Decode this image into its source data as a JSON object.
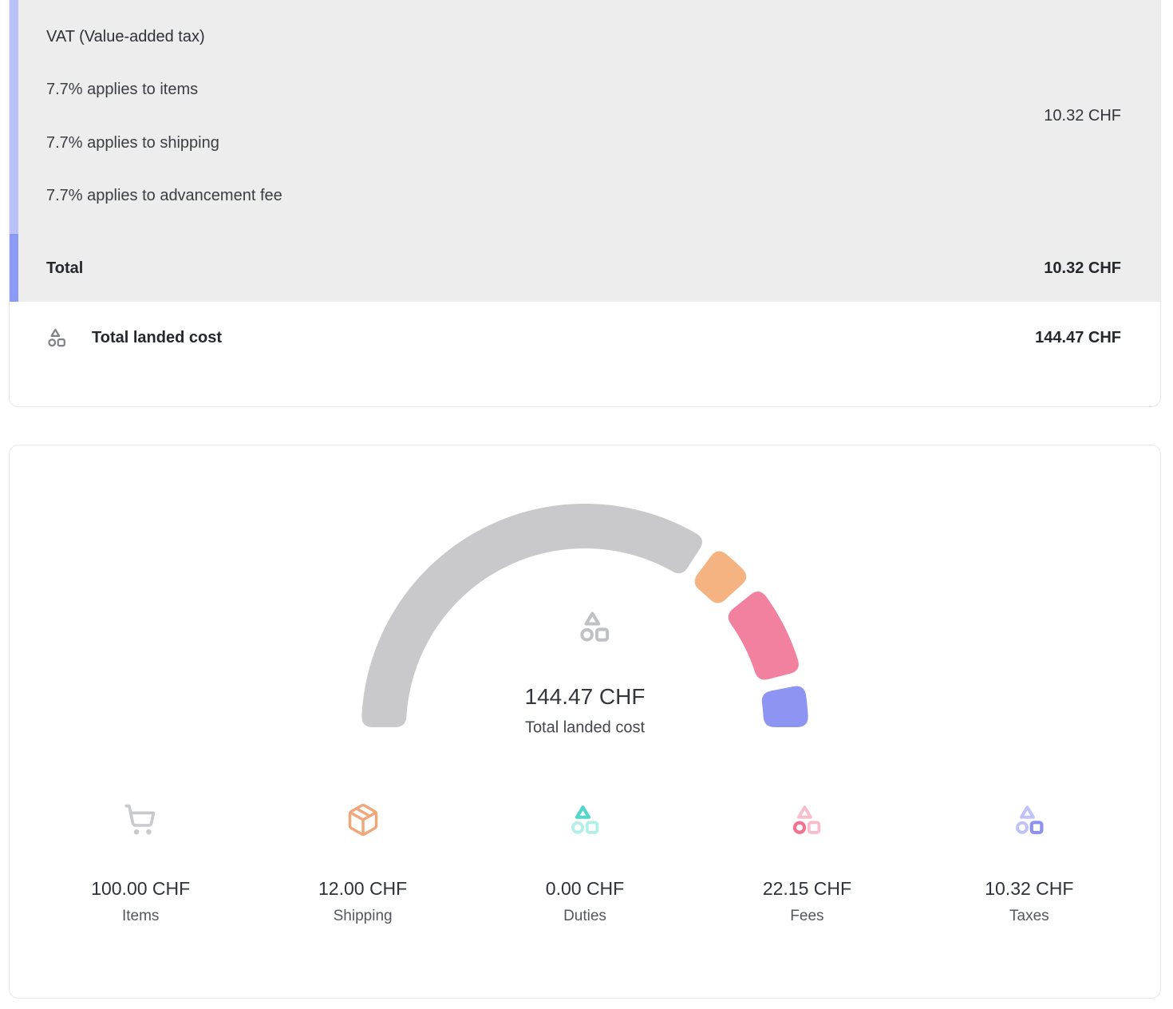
{
  "colors": {
    "accent_bar_light": "#b9c1f8",
    "accent_bar_dark": "#8b9af5",
    "tax_section_bg": "#ededee",
    "card_border": "#e9e7e5",
    "landed_row_icon": "#7f8288",
    "gauge_center_icon": "#bfc1c5"
  },
  "breakdown": {
    "tax": {
      "title": "VAT (Value-added tax)",
      "lines": [
        "7.7% applies to items",
        "7.7% applies to shipping",
        "7.7% applies to advancement fee"
      ],
      "amount": "10.32 CHF",
      "total_label": "Total",
      "total_amount": "10.32 CHF"
    },
    "landed": {
      "label": "Total landed cost",
      "amount": "144.47 CHF"
    }
  },
  "chart_data": {
    "type": "gauge",
    "title": "Total landed cost",
    "center_value": "144.47 CHF",
    "center_label": "Total landed cost",
    "total": 144.47,
    "unit": "CHF",
    "arc_degrees": 180,
    "legend_position": "bottom",
    "segments": [
      {
        "name": "Items",
        "value": 100.0,
        "display": "100.00 CHF",
        "color": "#c9c9cb",
        "icon": "cart-icon",
        "icon_accent": "#c9cacd",
        "icon_muted": "#c9cacd"
      },
      {
        "name": "Shipping",
        "value": 12.0,
        "display": "12.00 CHF",
        "color": "#f4b381",
        "icon": "package-icon",
        "icon_accent": "#f0a87b",
        "icon_muted": "#f0a87b"
      },
      {
        "name": "Duties",
        "value": 0.0,
        "display": "0.00 CHF",
        "color": "#62dbd1",
        "icon": "shapes-duties-icon",
        "icon_accent": "#52d7cb",
        "icon_muted": "#b3efe9"
      },
      {
        "name": "Fees",
        "value": 22.15,
        "display": "22.15 CHF",
        "color": "#f2809f",
        "icon": "shapes-fees-icon",
        "icon_accent": "#f2718f",
        "icon_muted": "#f8bdca"
      },
      {
        "name": "Taxes",
        "value": 10.32,
        "display": "10.32 CHF",
        "color": "#8e94f2",
        "icon": "shapes-taxes-icon",
        "icon_accent": "#8d92f0",
        "icon_muted": "#bec2f7"
      }
    ]
  }
}
